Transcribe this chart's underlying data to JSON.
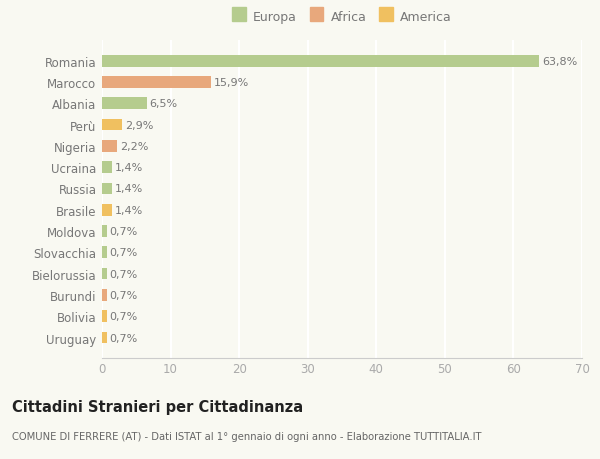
{
  "categories": [
    "Romania",
    "Marocco",
    "Albania",
    "Perù",
    "Nigeria",
    "Ucraina",
    "Russia",
    "Brasile",
    "Moldova",
    "Slovacchia",
    "Bielorussia",
    "Burundi",
    "Bolivia",
    "Uruguay"
  ],
  "values": [
    63.8,
    15.9,
    6.5,
    2.9,
    2.2,
    1.4,
    1.4,
    1.4,
    0.7,
    0.7,
    0.7,
    0.7,
    0.7,
    0.7
  ],
  "labels": [
    "63,8%",
    "15,9%",
    "6,5%",
    "2,9%",
    "2,2%",
    "1,4%",
    "1,4%",
    "1,4%",
    "0,7%",
    "0,7%",
    "0,7%",
    "0,7%",
    "0,7%",
    "0,7%"
  ],
  "colors": [
    "#b5cc8e",
    "#e8a87c",
    "#b5cc8e",
    "#f0c060",
    "#e8a87c",
    "#b5cc8e",
    "#b5cc8e",
    "#f0c060",
    "#b5cc8e",
    "#b5cc8e",
    "#b5cc8e",
    "#e8a87c",
    "#f0c060",
    "#f0c060"
  ],
  "continent": [
    "Europa",
    "Africa",
    "Europa",
    "America",
    "Africa",
    "Europa",
    "Europa",
    "America",
    "Europa",
    "Europa",
    "Europa",
    "Africa",
    "America",
    "America"
  ],
  "legend_labels": [
    "Europa",
    "Africa",
    "America"
  ],
  "legend_colors": [
    "#b5cc8e",
    "#e8a87c",
    "#f0c060"
  ],
  "title": "Cittadini Stranieri per Cittadinanza",
  "subtitle": "COMUNE DI FERRERE (AT) - Dati ISTAT al 1° gennaio di ogni anno - Elaborazione TUTTITALIA.IT",
  "xlim": [
    0,
    70
  ],
  "xticks": [
    0,
    10,
    20,
    30,
    40,
    50,
    60,
    70
  ],
  "background_color": "#f9f9f2",
  "grid_color": "#ffffff",
  "label_color": "#777777",
  "tick_color": "#aaaaaa",
  "title_color": "#222222",
  "subtitle_color": "#666666"
}
